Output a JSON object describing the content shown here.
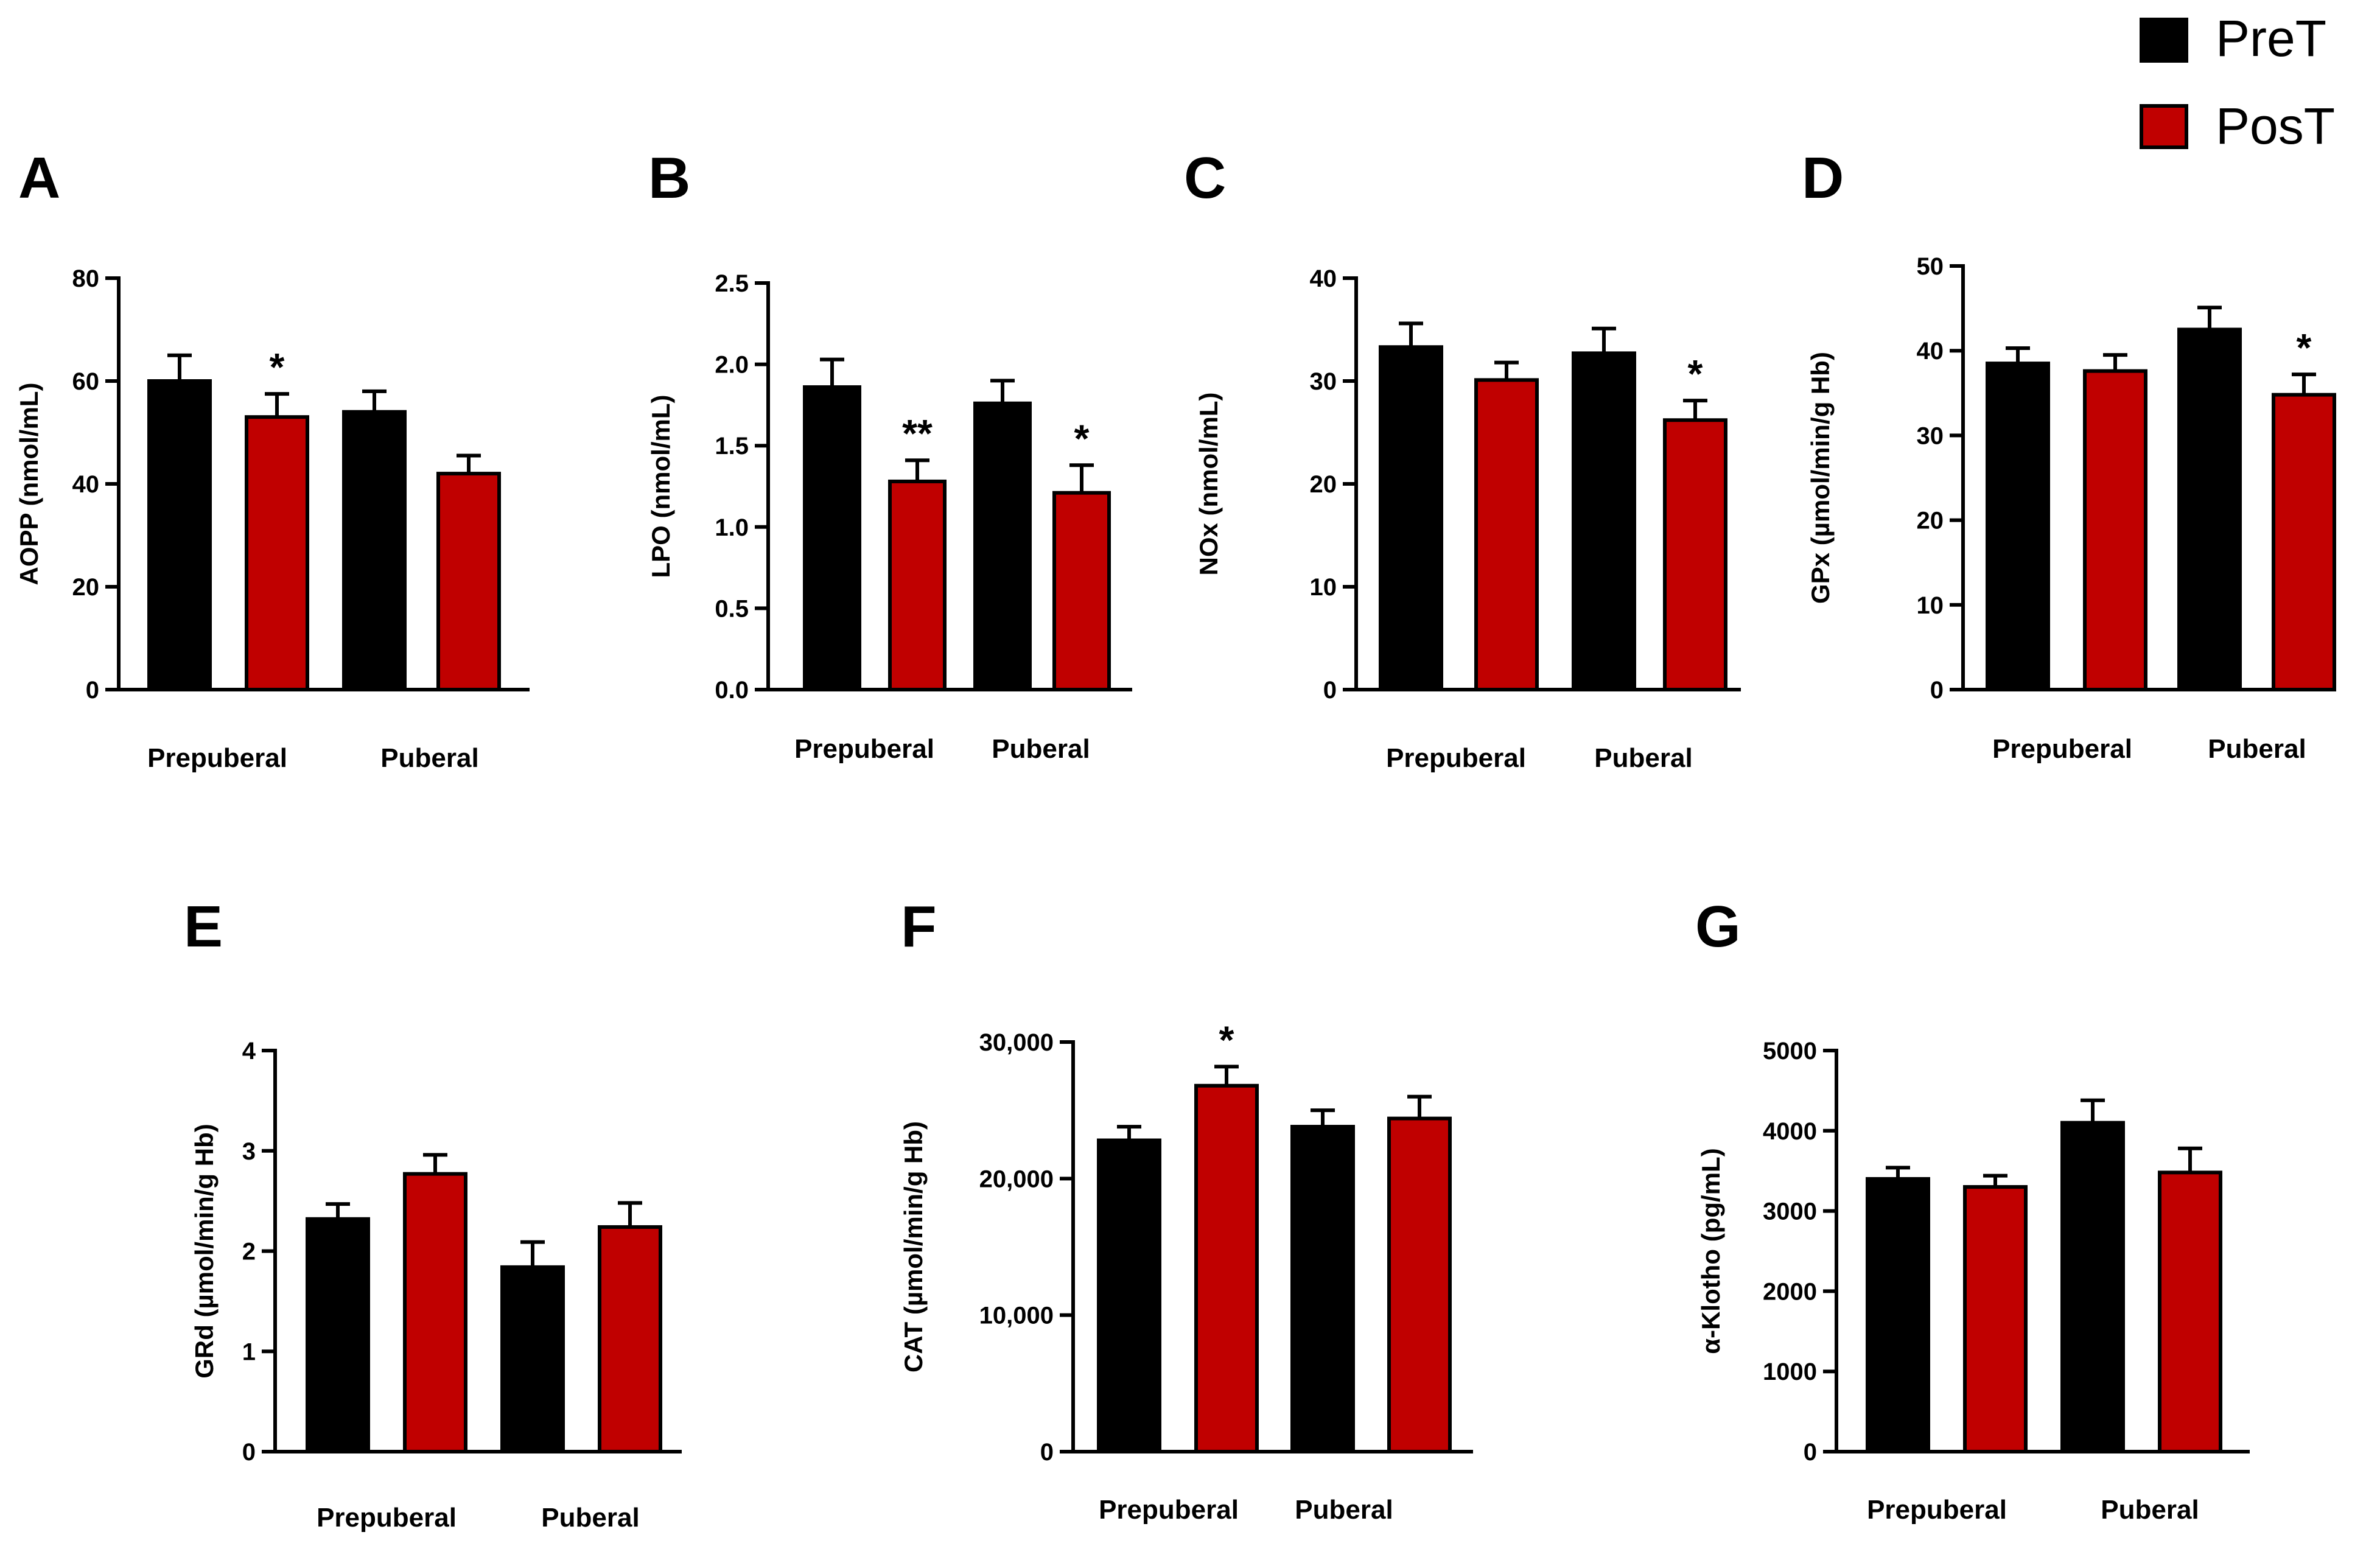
{
  "legend": [
    {
      "name": "PreT",
      "color": "#000000"
    },
    {
      "name": "PosT",
      "color": "#c00000"
    }
  ],
  "chart_data": [
    {
      "panel": "A",
      "type": "bar",
      "ylabel": "AOPP (nmol/mL)",
      "categories": [
        "Prepuberal",
        "Puberal"
      ],
      "ylim": [
        0,
        80
      ],
      "yticks": [
        "0",
        "20",
        "40",
        "60",
        "80"
      ],
      "series": [
        {
          "name": "PreT",
          "values": [
            60,
            54
          ],
          "errors": [
            5,
            4
          ]
        },
        {
          "name": "PosT",
          "values": [
            53,
            42
          ],
          "errors": [
            4.5,
            3.5
          ]
        }
      ],
      "significance": [
        {
          "series": "PosT",
          "category": "Prepuberal",
          "mark": "*"
        }
      ]
    },
    {
      "panel": "B",
      "type": "bar",
      "ylabel": "LPO (nmol/mL)",
      "categories": [
        "Prepuberal",
        "Puberal"
      ],
      "ylim": [
        0,
        2.5
      ],
      "yticks": [
        "0.0",
        "0.5",
        "1.0",
        "1.5",
        "2.0",
        "2.5"
      ],
      "series": [
        {
          "name": "PreT",
          "values": [
            1.86,
            1.76
          ],
          "errors": [
            0.17,
            0.14
          ]
        },
        {
          "name": "PosT",
          "values": [
            1.28,
            1.21
          ],
          "errors": [
            0.13,
            0.17
          ]
        }
      ],
      "significance": [
        {
          "series": "PosT",
          "category": "Prepuberal",
          "mark": "**"
        },
        {
          "series": "PosT",
          "category": "Puberal",
          "mark": "*"
        }
      ]
    },
    {
      "panel": "C",
      "type": "bar",
      "ylabel": "NOx (nmol/mL)",
      "categories": [
        "Prepuberal",
        "Puberal"
      ],
      "ylim": [
        0,
        40
      ],
      "yticks": [
        "0",
        "10",
        "20",
        "30",
        "40"
      ],
      "series": [
        {
          "name": "PreT",
          "values": [
            33.3,
            32.7
          ],
          "errors": [
            2.3,
            2.4
          ]
        },
        {
          "name": "PosT",
          "values": [
            30.1,
            26.2
          ],
          "errors": [
            1.7,
            1.9
          ]
        }
      ],
      "significance": [
        {
          "series": "PosT",
          "category": "Puberal",
          "mark": "*"
        }
      ]
    },
    {
      "panel": "D",
      "type": "bar",
      "ylabel": "GPx (µmol/min/g Hb)",
      "categories": [
        "Prepuberal",
        "Puberal"
      ],
      "ylim": [
        0,
        50
      ],
      "yticks": [
        "0",
        "10",
        "20",
        "30",
        "40",
        "50"
      ],
      "series": [
        {
          "name": "PreT",
          "values": [
            38.5,
            42.5
          ],
          "errors": [
            1.8,
            2.6
          ]
        },
        {
          "name": "PosT",
          "values": [
            37.6,
            34.8
          ],
          "errors": [
            1.9,
            2.4
          ]
        }
      ],
      "significance": [
        {
          "series": "PosT",
          "category": "Puberal",
          "mark": "*"
        }
      ]
    },
    {
      "panel": "E",
      "type": "bar",
      "ylabel": "GRd (µmol/min/g Hb)",
      "categories": [
        "Prepuberal",
        "Puberal"
      ],
      "ylim": [
        0,
        4
      ],
      "yticks": [
        "0",
        "1",
        "2",
        "3",
        "4"
      ],
      "series": [
        {
          "name": "PreT",
          "values": [
            2.32,
            1.84
          ],
          "errors": [
            0.15,
            0.25
          ]
        },
        {
          "name": "PosT",
          "values": [
            2.77,
            2.24
          ],
          "errors": [
            0.19,
            0.24
          ]
        }
      ],
      "significance": []
    },
    {
      "panel": "F",
      "type": "bar",
      "ylabel": "CAT (µmol/min/g Hb)",
      "categories": [
        "Prepuberal",
        "Puberal"
      ],
      "ylim": [
        0,
        30000
      ],
      "yticks": [
        "0",
        "10,000",
        "20,000",
        "30,000"
      ],
      "series": [
        {
          "name": "PreT",
          "values": [
            22800,
            23800
          ],
          "errors": [
            1000,
            1200
          ]
        },
        {
          "name": "PosT",
          "values": [
            26800,
            24400
          ],
          "errors": [
            1400,
            1600
          ]
        }
      ],
      "significance": [
        {
          "series": "PosT",
          "category": "Prepuberal",
          "mark": "*"
        }
      ]
    },
    {
      "panel": "G",
      "type": "bar",
      "ylabel": "α-Klotho (pg/mL)",
      "categories": [
        "Prepuberal",
        "Puberal"
      ],
      "ylim": [
        0,
        5000
      ],
      "yticks": [
        "0",
        "1000",
        "2000",
        "3000",
        "4000",
        "5000"
      ],
      "series": [
        {
          "name": "PreT",
          "values": [
            3400,
            4100
          ],
          "errors": [
            140,
            280
          ]
        },
        {
          "name": "PosT",
          "values": [
            3300,
            3480
          ],
          "errors": [
            140,
            300
          ]
        }
      ],
      "significance": []
    }
  ]
}
